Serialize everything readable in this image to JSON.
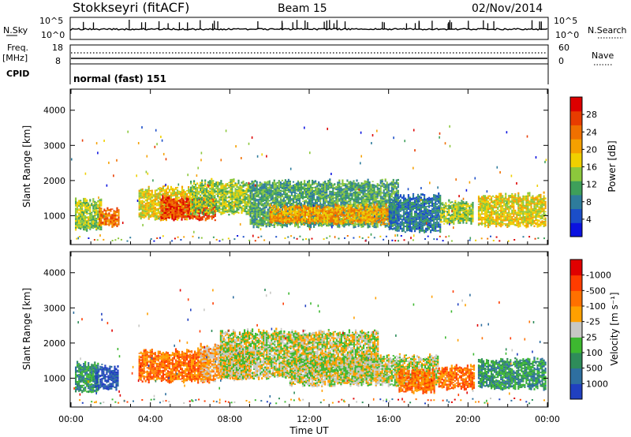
{
  "header": {
    "station": "Stokkseyri (fitACF)",
    "beam": "Beam 15",
    "date": "02/Nov/2014"
  },
  "summary": {
    "nsky_label": "N.Sky",
    "nsky_top": "10^5",
    "nsky_bottom": "10^0",
    "nsearch_label": "N.Search",
    "nsearch_top": "10^5",
    "nsearch_bottom": "10^0",
    "freq_label": "Freq.",
    "freq_unit": "[MHz]",
    "freq_top": "18",
    "freq_bottom": "8",
    "nave_label": "Nave",
    "nave_top": "60",
    "nave_bottom": "0",
    "cpid_label": "CPID",
    "cpid_value": "normal (fast) 151"
  },
  "chart_data": [
    {
      "type": "heatmap",
      "name": "power",
      "ylabel": "Slant Range [km]",
      "ylim": [
        180,
        4600
      ],
      "yticks": [
        1000,
        2000,
        3000,
        4000
      ],
      "xlim": [
        0,
        24
      ],
      "colorbar": {
        "label": "Power [dB]",
        "ticks": [
          "4",
          "8",
          "12",
          "16",
          "20",
          "24",
          "28"
        ],
        "colors": [
          "#0b12e0",
          "#1b4ec8",
          "#2e7c9c",
          "#3e9f5a",
          "#8cc83c",
          "#f0d000",
          "#f5a000",
          "#f07000",
          "#e83c00",
          "#dd0000"
        ]
      },
      "bands": [
        {
          "t": [
            0.2,
            1.5
          ],
          "lower": 600,
          "upper": 1400,
          "level": 4
        },
        {
          "t": [
            1.4,
            2.4
          ],
          "lower": 700,
          "upper": 1150,
          "level": 7
        },
        {
          "t": [
            3.4,
            6.0
          ],
          "lower": 900,
          "upper": 1750,
          "level": 5
        },
        {
          "t": [
            4.5,
            7.3
          ],
          "lower": 900,
          "upper": 1450,
          "level": 8
        },
        {
          "t": [
            6.0,
            9.0
          ],
          "lower": 1050,
          "upper": 1950,
          "level": 4
        },
        {
          "t": [
            9.0,
            16.5
          ],
          "lower": 700,
          "upper": 1950,
          "level": 3
        },
        {
          "t": [
            10.0,
            16.0
          ],
          "lower": 780,
          "upper": 1250,
          "level": 6
        },
        {
          "t": [
            16.0,
            18.6
          ],
          "lower": 550,
          "upper": 1550,
          "level": 2
        },
        {
          "t": [
            18.6,
            20.2
          ],
          "lower": 800,
          "upper": 1350,
          "level": 4
        },
        {
          "t": [
            20.5,
            23.9
          ],
          "lower": 700,
          "upper": 1550,
          "level": 5
        }
      ]
    },
    {
      "type": "heatmap",
      "name": "velocity",
      "ylabel": "Slant Range [km]",
      "ylim": [
        180,
        4600
      ],
      "yticks": [
        1000,
        2000,
        3000,
        4000
      ],
      "xlim": [
        0,
        24
      ],
      "xticks": [
        "00:00",
        "04:00",
        "08:00",
        "12:00",
        "16:00",
        "20:00",
        "00:00"
      ],
      "xlabel": "Time UT",
      "colorbar": {
        "label": "Velocity [m s⁻¹]",
        "ticks": [
          "1000",
          "500",
          "100",
          "25",
          "-25",
          "-100",
          "-500",
          "-1000"
        ],
        "colors": [
          "#2040c0",
          "#2e6fa0",
          "#2e8c5a",
          "#3db830",
          "#c8c8c4",
          "#ffa000",
          "#ff7000",
          "#ff3c00",
          "#e00000"
        ]
      },
      "bands": [
        {
          "t": [
            0.2,
            1.4
          ],
          "lower": 600,
          "upper": 1400,
          "level": 2
        },
        {
          "t": [
            1.2,
            2.4
          ],
          "lower": 700,
          "upper": 1300,
          "level": 0
        },
        {
          "t": [
            3.4,
            7.0
          ],
          "lower": 900,
          "upper": 1750,
          "level": 6
        },
        {
          "t": [
            6.5,
            9.0
          ],
          "lower": 950,
          "upper": 1900,
          "level": 5
        },
        {
          "t": [
            7.5,
            15.5
          ],
          "lower": 1000,
          "upper": 2300,
          "level": 4
        },
        {
          "t": [
            11.0,
            18.5
          ],
          "lower": 800,
          "upper": 1600,
          "level": 4
        },
        {
          "t": [
            16.5,
            18.3
          ],
          "lower": 600,
          "upper": 1200,
          "level": 6
        },
        {
          "t": [
            18.5,
            20.3
          ],
          "lower": 700,
          "upper": 1300,
          "level": 6
        },
        {
          "t": [
            20.5,
            23.9
          ],
          "lower": 700,
          "upper": 1500,
          "level": 2
        }
      ]
    }
  ]
}
